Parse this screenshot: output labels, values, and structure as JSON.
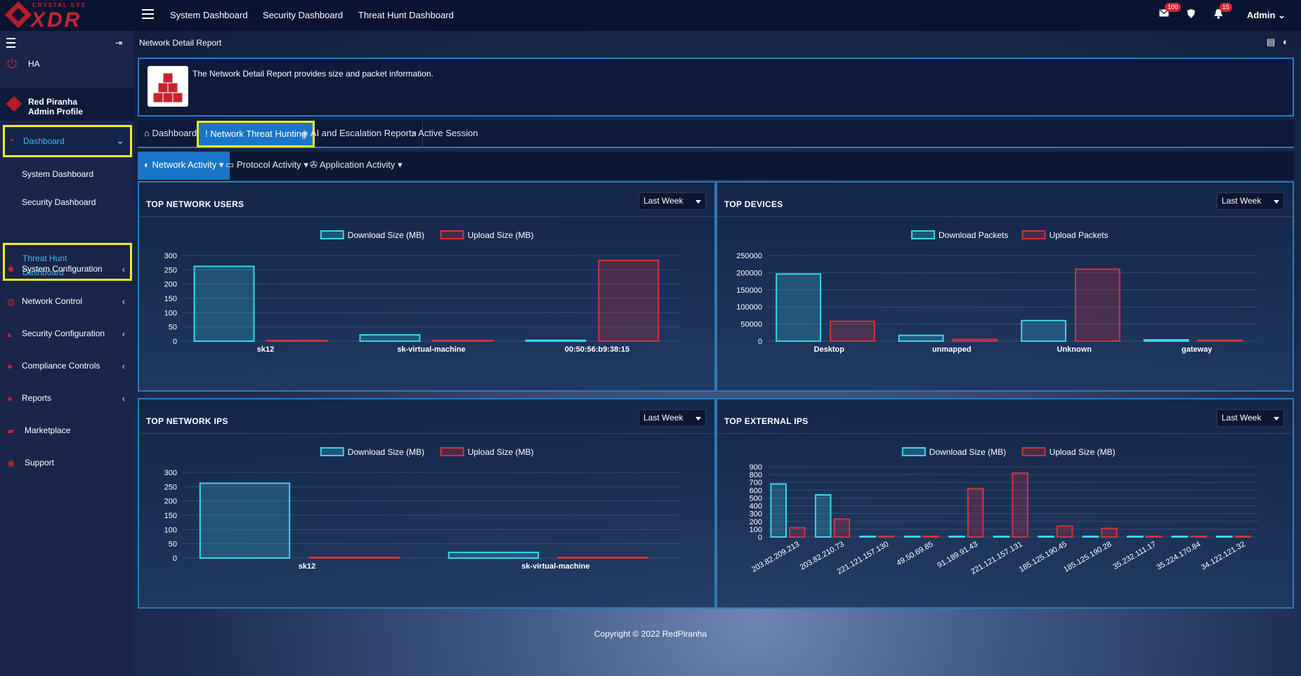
{
  "brand": {
    "top": "CRYSTAL EYE",
    "main": "XDR"
  },
  "topnav": {
    "links": [
      "System Dashboard",
      "Security Dashboard",
      "Threat Hunt Dashboard"
    ],
    "mail_count": "100",
    "bell_count": "15",
    "user": "Admin"
  },
  "sidebar": {
    "ha": "HA",
    "profile_name": "Red Piranha",
    "profile_role": "Admin Profile",
    "dashboard": "Dashboard",
    "sub_items": [
      "System Dashboard",
      "Security Dashboard"
    ],
    "threat_hunt": "Threat Hunt Dashboard",
    "items": [
      {
        "label": "System Configuration",
        "icon": "gear-icon"
      },
      {
        "label": "Network Control",
        "icon": "network-icon"
      },
      {
        "label": "Security Configuration",
        "icon": "shield-icon"
      },
      {
        "label": "Compliance Controls",
        "icon": "compliance-icon"
      },
      {
        "label": "Reports",
        "icon": "reports-icon"
      },
      {
        "label": "Marketplace",
        "icon": "cart-icon"
      },
      {
        "label": "Support",
        "icon": "support-icon"
      }
    ]
  },
  "page": {
    "breadcrumb": "Network Detail Report",
    "info_text": "The Network Detail Report provides size and packet information.",
    "tabs": [
      "Dashboard",
      "Network Threat Hunting",
      "AI and Escalation Reports",
      "Active Session"
    ],
    "subtabs": [
      "Network Activity",
      "Protocol Activity",
      "Application Activity"
    ],
    "footer": "Copyright © 2022 RedPiranha"
  },
  "colors": {
    "download": "#3ad4ec",
    "upload": "#d2313a",
    "accent": "#1a75c9",
    "highlight": "#f5ea1c"
  },
  "chart_data": [
    {
      "type": "bar",
      "title": "TOP NETWORK USERS",
      "period": "Last Week",
      "categories": [
        "sk12",
        "sk-virtual-machine",
        "00:50:56:b9:38:15"
      ],
      "series": [
        {
          "name": "Download Size (MB)",
          "values": [
            262,
            22,
            3
          ]
        },
        {
          "name": "Upload Size (MB)",
          "values": [
            2,
            0,
            283
          ]
        }
      ],
      "ylim": [
        0,
        300
      ],
      "yticks": [
        "300",
        "250",
        "200",
        "150",
        "100",
        "50",
        "0"
      ],
      "legend": "top"
    },
    {
      "type": "bar",
      "title": "TOP DEVICES",
      "period": "Last Week",
      "categories": [
        "Desktop",
        "unmapped",
        "Unknown",
        "gateway"
      ],
      "series": [
        {
          "name": "Download Packets",
          "values": [
            196000,
            17000,
            60000,
            4000
          ]
        },
        {
          "name": "Upload Packets",
          "values": [
            58000,
            5000,
            210000,
            3000
          ]
        }
      ],
      "ylim": [
        0,
        250000
      ],
      "yticks": [
        "250000",
        "200000",
        "150000",
        "100000",
        "50000",
        "0"
      ],
      "legend": "top"
    },
    {
      "type": "bar",
      "title": "TOP NETWORK IPS",
      "period": "Last Week",
      "categories": [
        "sk12",
        "sk-virtual-machine"
      ],
      "series": [
        {
          "name": "Download Size (MB)",
          "values": [
            262,
            20
          ]
        },
        {
          "name": "Upload Size (MB)",
          "values": [
            2,
            0
          ]
        }
      ],
      "ylim": [
        0,
        300
      ],
      "yticks": [
        "300",
        "250",
        "200",
        "150",
        "100",
        "50",
        "0"
      ],
      "legend": "top"
    },
    {
      "type": "bar",
      "title": "TOP EXTERNAL IPS",
      "period": "Last Week",
      "categories": [
        "203.82.209.213",
        "203.82.210.73",
        "221.121.157.130",
        "49.50.69.85",
        "91.189.91.43",
        "221.121.157.131",
        "185.125.190.45",
        "185.125.190.28",
        "35.232.111.17",
        "35.224.170.84",
        "34.122.121.32"
      ],
      "series": [
        {
          "name": "Download Size (MB)",
          "values": [
            680,
            540,
            5,
            3,
            2,
            1,
            1,
            0,
            0,
            0,
            0
          ]
        },
        {
          "name": "Upload Size (MB)",
          "values": [
            120,
            230,
            5,
            3,
            620,
            820,
            140,
            110,
            0,
            0,
            0
          ]
        }
      ],
      "ylim": [
        0,
        900
      ],
      "yticks": [
        "900",
        "800",
        "700",
        "600",
        "500",
        "400",
        "300",
        "200",
        "100",
        "0"
      ],
      "legend": "top"
    }
  ]
}
